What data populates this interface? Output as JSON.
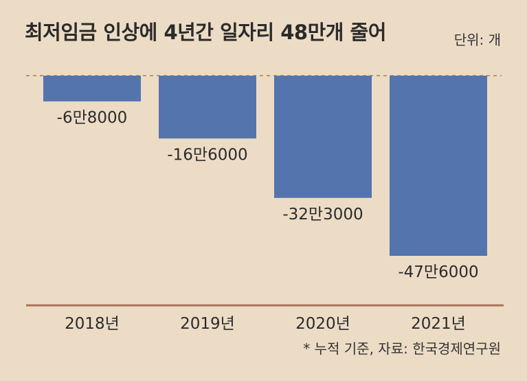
{
  "title": "최저임금 인상에 4년간 일자리 48만개 줄어",
  "unit_label": "단위: 개",
  "source": "* 누적 기준, 자료: 한국경제연구원",
  "colors": {
    "background": "#ecdcc6",
    "bar": "#5474ad",
    "axis": "#a8745a",
    "zero_line": "#b5764f",
    "text": "#2b2b2b"
  },
  "chart_data": {
    "type": "bar",
    "title": "최저임금 인상에 4년간 일자리 48만개 줄어",
    "xlabel": "",
    "ylabel": "",
    "unit": "단위: 개",
    "categories": [
      "2018년",
      "2019년",
      "2020년",
      "2021년"
    ],
    "values": [
      -68000,
      -166000,
      -323000,
      -476000
    ],
    "data_labels": [
      "-6만8000",
      "-16만6000",
      "-32만3000",
      "-47만6000"
    ],
    "ylim": [
      -476000,
      0
    ],
    "grid": false,
    "legend": "none"
  }
}
